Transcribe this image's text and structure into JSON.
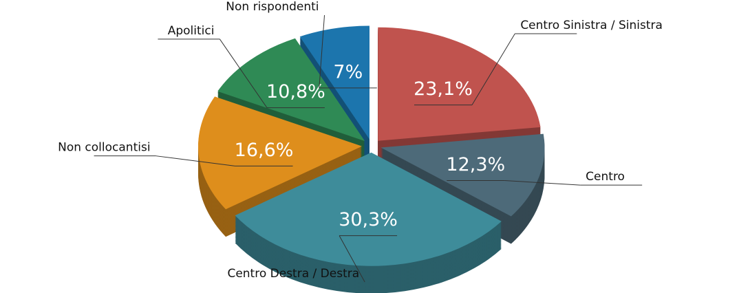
{
  "chart_data": {
    "type": "pie",
    "categories": [
      "Centro Sinistra / Sinistra",
      "Centro",
      "Centro Destra / Destra",
      "Non collocantisi",
      "Apolitici",
      "Non rispondenti"
    ],
    "values": [
      23.1,
      12.3,
      30.3,
      16.6,
      10.8,
      7
    ],
    "value_labels": [
      "23,1%",
      "12,3%",
      "30,3%",
      "16,6%",
      "10,8%",
      "7%"
    ],
    "colors": [
      "#c0534e",
      "#4d6a79",
      "#3e8c9a",
      "#de8e1c",
      "#2f8a55",
      "#1c75ad"
    ]
  }
}
